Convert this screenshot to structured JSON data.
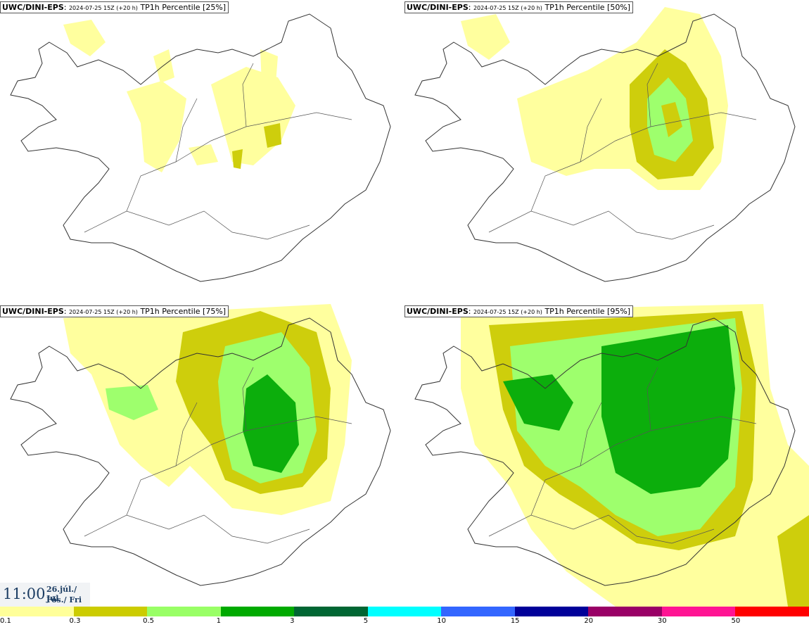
{
  "panels": [
    {
      "model": "UWC/DINI-EPS",
      "run": "2024-07-25 15Z (+20 h)",
      "field": "TP1h Percentile [25%]",
      "percentile": 25
    },
    {
      "model": "UWC/DINI-EPS",
      "run": "2024-07-25 15Z (+20 h)",
      "field": "TP1h Percentile [50%]",
      "percentile": 50
    },
    {
      "model": "UWC/DINI-EPS",
      "run": "2024-07-25 15Z (+20 h)",
      "field": "TP1h Percentile [75%]",
      "percentile": 75
    },
    {
      "model": "UWC/DINI-EPS",
      "run": "2024-07-25 15Z (+20 h)",
      "field": "TP1h Percentile [95%]",
      "percentile": 95
    }
  ],
  "valid_time": {
    "time": "11:00",
    "date": "26.júl./ Jul",
    "weekday": "Fös./ Fri"
  },
  "colorbar": {
    "labels": [
      "0.1",
      "0.3",
      "0.5",
      "1",
      "3",
      "5",
      "10",
      "15",
      "20",
      "30",
      "50"
    ],
    "colors": [
      "#ffff99",
      "#cccc00",
      "#99ff66",
      "#00aa00",
      "#006633",
      "#00ffff",
      "#3366ff",
      "#000099",
      "#990066",
      "#ff1493",
      "#ff0000"
    ]
  }
}
